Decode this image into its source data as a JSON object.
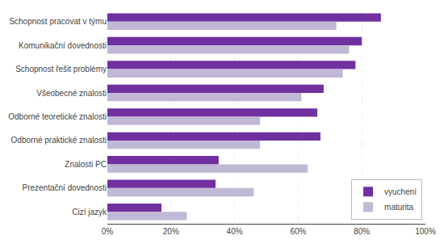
{
  "chart_data": {
    "type": "bar",
    "orientation": "horizontal",
    "categories": [
      "Schopnost pracovat v týmu",
      "Komunikační dovednosti",
      "Schopnost řešit problémy",
      "Všeobecné znalosti",
      "Odborné teoretické znalosti",
      "Odborné praktické znalosti",
      "Znalosti PC",
      "Prezentační dovednosti",
      "Cizí jazyk"
    ],
    "series": [
      {
        "name": "vyuchení",
        "color": "#7030A0",
        "values": [
          86,
          80,
          78,
          68,
          66,
          67,
          35,
          34,
          17
        ]
      },
      {
        "name": "maturita",
        "color": "#C0B8D4",
        "values": [
          72,
          76,
          74,
          61,
          48,
          48,
          63,
          46,
          25
        ]
      }
    ],
    "xlim": [
      0,
      100
    ],
    "xticks": [
      {
        "value": 0,
        "label": "0%"
      },
      {
        "value": 20,
        "label": "20%"
      },
      {
        "value": 40,
        "label": "40%"
      },
      {
        "value": 60,
        "label": "60%"
      },
      {
        "value": 80,
        "label": "80%"
      },
      {
        "value": 100,
        "label": "100%"
      }
    ],
    "grid": true,
    "legend": "lower right"
  }
}
